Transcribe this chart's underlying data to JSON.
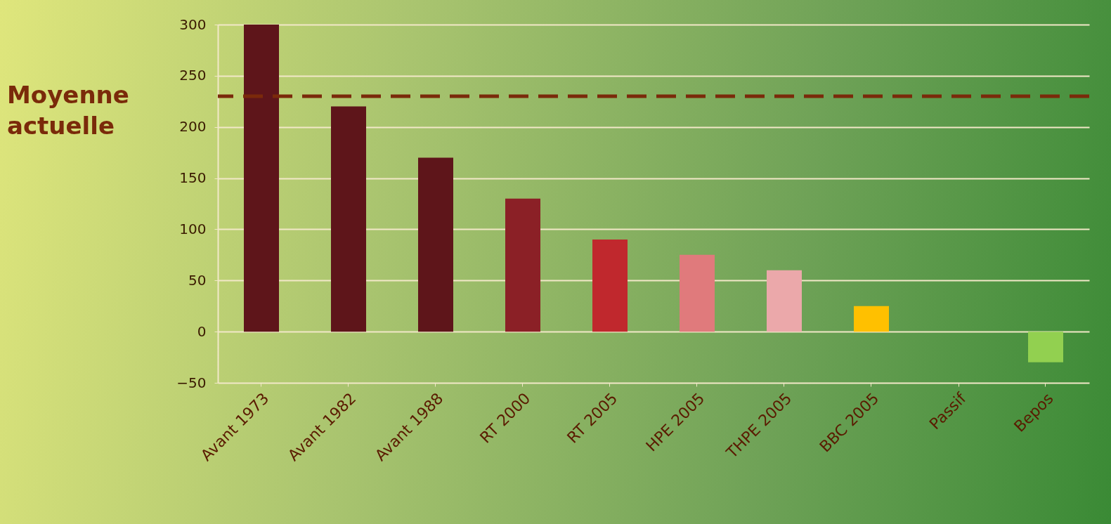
{
  "chart_data": {
    "type": "bar",
    "categories": [
      "Avant 1973",
      "Avant 1982",
      "Avant 1988",
      "RT 2000",
      "RT 2005",
      "HPE 2005",
      "THPE 2005",
      "BBC 2005",
      "Passif",
      "Bepos"
    ],
    "values": [
      300,
      220,
      170,
      130,
      90,
      75,
      60,
      25,
      0,
      -30
    ],
    "colors": [
      "#5e151a",
      "#5e151a",
      "#5e151a",
      "#8b2026",
      "#c0282d",
      "#e07a7c",
      "#eba8aa",
      "#ffc000",
      "#c8c800",
      "#92d050"
    ],
    "ylim": [
      -50,
      300
    ],
    "yticks": [
      -50,
      0,
      50,
      100,
      150,
      200,
      250,
      300
    ],
    "grid": "y",
    "ref_lines": [
      {
        "axis": "y",
        "value": 230,
        "label": "Moyenne actuelle",
        "color": "#7a2a0a",
        "line_style": "dashed"
      }
    ]
  }
}
